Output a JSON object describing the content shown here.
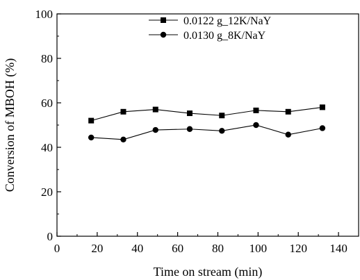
{
  "chart_data": {
    "type": "line",
    "title": "",
    "xlabel": "Time on stream (min)",
    "ylabel": "Conversion of MBOH (%)",
    "xlim": [
      0,
      150
    ],
    "ylim": [
      0,
      100
    ],
    "xticks": [
      0,
      20,
      40,
      60,
      80,
      100,
      120,
      140
    ],
    "yticks": [
      0,
      20,
      40,
      60,
      80,
      100
    ],
    "grid": false,
    "legend_position": "top-right",
    "series": [
      {
        "name": "0.0122 g_12K/NaY",
        "marker": "square",
        "color": "#000000",
        "x": [
          17,
          33,
          49,
          66,
          82,
          99,
          115,
          132
        ],
        "y": [
          52,
          56,
          57,
          55.3,
          54.3,
          56.6,
          56,
          58
        ]
      },
      {
        "name": "0.0130 g_8K/NaY",
        "marker": "circle",
        "color": "#000000",
        "x": [
          17,
          33,
          49,
          66,
          82,
          99,
          115,
          132
        ],
        "y": [
          44.4,
          43.5,
          47.8,
          48.2,
          47.4,
          50,
          45.7,
          48.6
        ]
      }
    ]
  }
}
